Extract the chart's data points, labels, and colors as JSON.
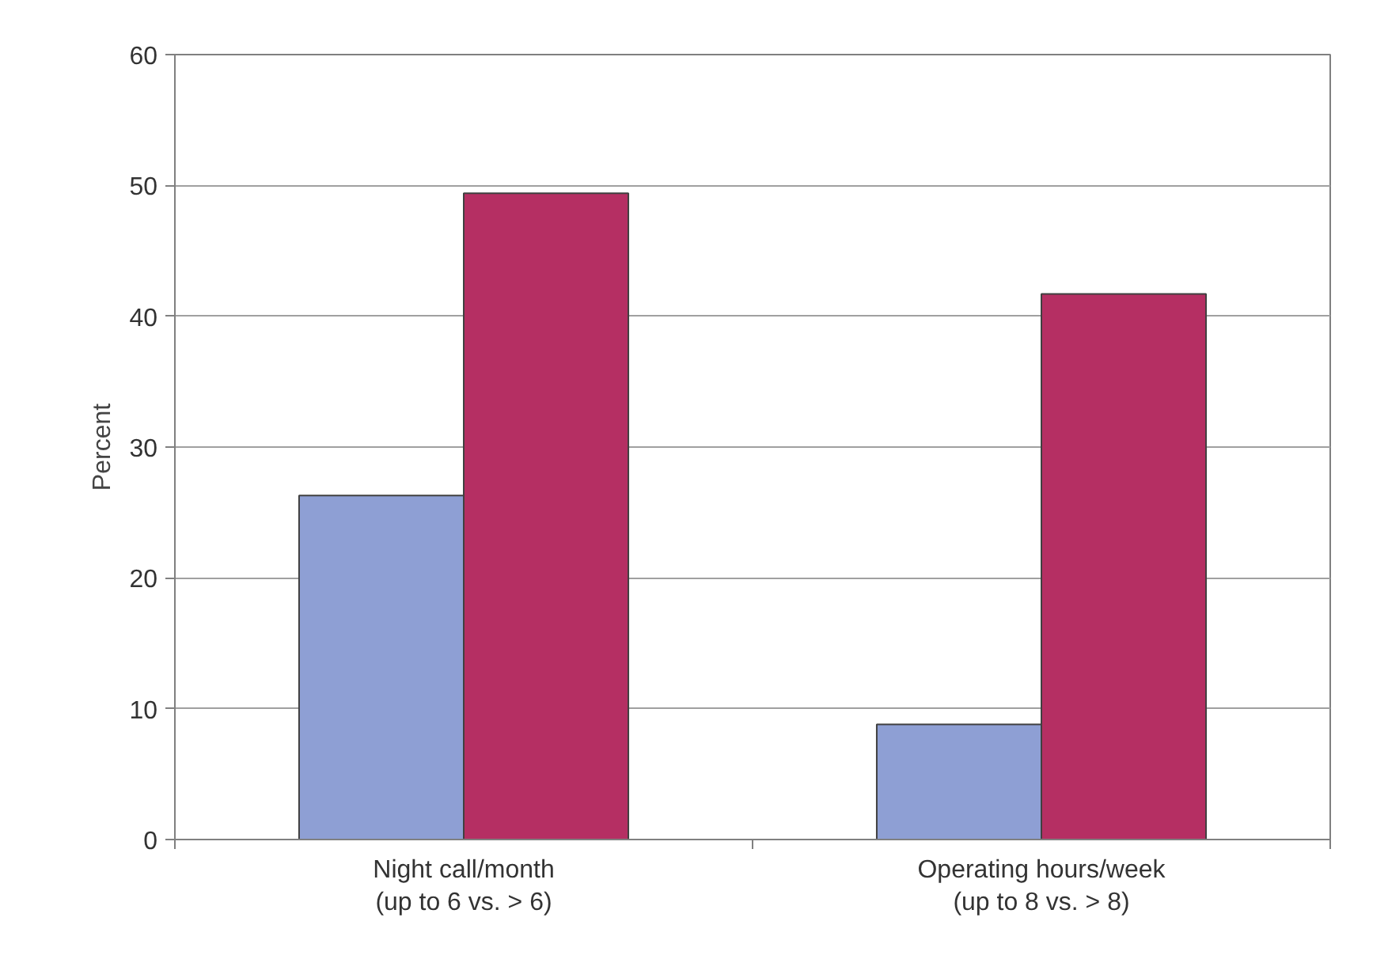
{
  "chart_data": {
    "type": "bar",
    "ylabel": "Percent",
    "categories": [
      "Night call/month\n(up to 6 vs. > 6)",
      "Operating hours/week\n(up to 8 vs. > 8)"
    ],
    "series": [
      {
        "color": "#8e9fd4",
        "values": [
          26.3,
          8.8
        ]
      },
      {
        "color": "#b52f63",
        "values": [
          49.4,
          41.7
        ]
      }
    ],
    "ylim": [
      0,
      60
    ],
    "yticks": [
      0,
      10,
      20,
      30,
      40,
      50,
      60
    ],
    "grid": "y"
  }
}
